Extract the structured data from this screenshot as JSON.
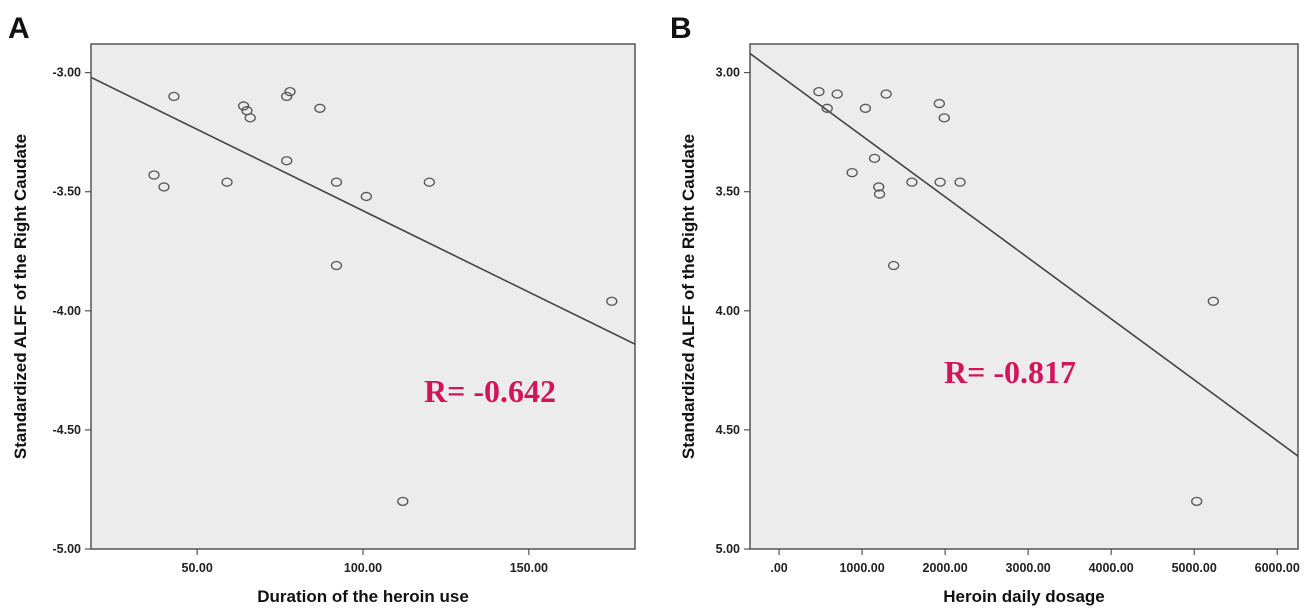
{
  "colors": {
    "plot_background": "#ececec",
    "frame": "#555555",
    "point_stroke": "#555555",
    "fit_line": "#444444",
    "r_label": "#d4145a"
  },
  "chart_data": [
    {
      "type": "scatter",
      "panel_label": "A",
      "xlabel": "Duration of the heroin use",
      "ylabel": "Standardized ALFF of the Right Caudate",
      "xlim": [
        18,
        182
      ],
      "ylim": [
        -5.0,
        -2.88
      ],
      "x_ticks": [
        50,
        100,
        150
      ],
      "x_tick_labels": [
        "50.00",
        "100.00",
        "150.00"
      ],
      "y_ticks": [
        -3.0,
        -3.5,
        -4.0,
        -4.5,
        -5.0
      ],
      "y_tick_labels": [
        "-3.00",
        "-3.50",
        "-4.00",
        "-4.50",
        "-5.00"
      ],
      "points": [
        {
          "x": 37,
          "y": -3.43
        },
        {
          "x": 40,
          "y": -3.48
        },
        {
          "x": 43,
          "y": -3.1
        },
        {
          "x": 59,
          "y": -3.46
        },
        {
          "x": 64,
          "y": -3.14
        },
        {
          "x": 65,
          "y": -3.16
        },
        {
          "x": 66,
          "y": -3.19
        },
        {
          "x": 77,
          "y": -3.1
        },
        {
          "x": 78,
          "y": -3.08
        },
        {
          "x": 77,
          "y": -3.37
        },
        {
          "x": 87,
          "y": -3.15
        },
        {
          "x": 92,
          "y": -3.46
        },
        {
          "x": 92,
          "y": -3.81
        },
        {
          "x": 101,
          "y": -3.52
        },
        {
          "x": 112,
          "y": -4.8
        },
        {
          "x": 120,
          "y": -3.46
        },
        {
          "x": 175,
          "y": -3.96
        }
      ],
      "fit_line": {
        "x": [
          18,
          182
        ],
        "y": [
          -3.02,
          -4.14
        ]
      },
      "annotation": "R= -0.642"
    },
    {
      "type": "scatter",
      "panel_label": "B",
      "xlabel": "Heroin daily dosage",
      "ylabel": "Standardized ALFF of the Right Caudate",
      "xlim": [
        -350,
        6250
      ],
      "ylim": [
        5.0,
        2.88
      ],
      "x_ticks": [
        0,
        1000,
        2000,
        3000,
        4000,
        5000,
        6000
      ],
      "x_tick_labels": [
        ".00",
        "1000.00",
        "2000.00",
        "3000.00",
        "4000.00",
        "5000.00",
        "6000.00"
      ],
      "y_ticks": [
        3.0,
        3.5,
        4.0,
        4.5,
        5.0
      ],
      "y_tick_labels": [
        "3.00",
        "3.50",
        "4.00",
        "4.50",
        "5.00"
      ],
      "points": [
        {
          "x": 480,
          "y": 3.08
        },
        {
          "x": 580,
          "y": 3.15
        },
        {
          "x": 700,
          "y": 3.09
        },
        {
          "x": 880,
          "y": 3.42
        },
        {
          "x": 1040,
          "y": 3.15
        },
        {
          "x": 1150,
          "y": 3.36
        },
        {
          "x": 1200,
          "y": 3.48
        },
        {
          "x": 1210,
          "y": 3.51
        },
        {
          "x": 1290,
          "y": 3.09
        },
        {
          "x": 1380,
          "y": 3.81
        },
        {
          "x": 1600,
          "y": 3.46
        },
        {
          "x": 1930,
          "y": 3.13
        },
        {
          "x": 1940,
          "y": 3.46
        },
        {
          "x": 1990,
          "y": 3.19
        },
        {
          "x": 2180,
          "y": 3.46
        },
        {
          "x": 5030,
          "y": 4.8
        },
        {
          "x": 5230,
          "y": 3.96
        }
      ],
      "fit_line": {
        "x": [
          -350,
          6250
        ],
        "y": [
          2.92,
          4.61
        ]
      },
      "annotation": "R= -0.817"
    }
  ]
}
